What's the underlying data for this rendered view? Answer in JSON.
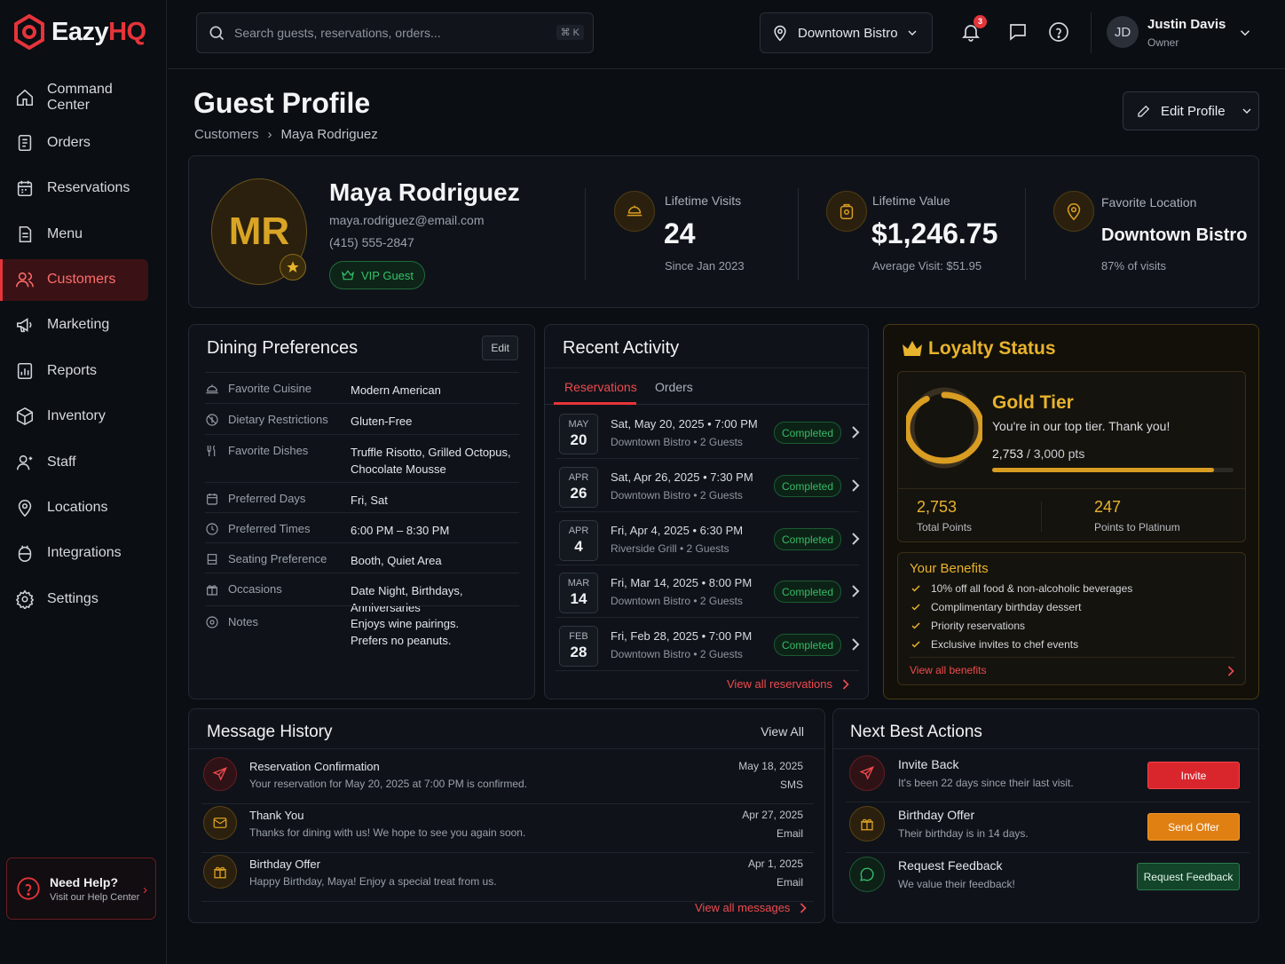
{
  "app": {
    "brand_main": "Eazy",
    "brand_accent": "HQ",
    "accent_color": "#e5343a",
    "gold_color": "#e8b32d"
  },
  "sidebar": {
    "items": [
      {
        "label": "Command Center",
        "icon": "home-icon"
      },
      {
        "label": "Orders",
        "icon": "receipt-icon"
      },
      {
        "label": "Reservations",
        "icon": "calendar-icon"
      },
      {
        "label": "Menu",
        "icon": "document-icon"
      },
      {
        "label": "Customers",
        "icon": "users-icon",
        "active": true
      },
      {
        "label": "Marketing",
        "icon": "megaphone-icon"
      },
      {
        "label": "Reports",
        "icon": "report-icon"
      },
      {
        "label": "Inventory",
        "icon": "box-icon"
      },
      {
        "label": "Staff",
        "icon": "staff-icon"
      },
      {
        "label": "Locations",
        "icon": "pin-icon"
      },
      {
        "label": "Integrations",
        "icon": "plug-icon"
      },
      {
        "label": "Settings",
        "icon": "gear-icon"
      }
    ],
    "help": {
      "title": "Need Help?",
      "subtitle": "Visit our Help Center"
    }
  },
  "topbar": {
    "search_placeholder": "Search guests, reservations, orders...",
    "search_shortcut": "⌘ K",
    "location": "Downtown Bistro",
    "notifications_count": "3",
    "user": {
      "initials": "JD",
      "name": "Justin Davis",
      "role": "Owner"
    }
  },
  "page": {
    "title": "Guest Profile",
    "breadcrumb": [
      "Customers",
      "Maya Rodriguez"
    ],
    "edit_button": "Edit Profile"
  },
  "profile": {
    "initials": "MR",
    "name": "Maya Rodriguez",
    "email": "maya.rodriguez@email.com",
    "phone": "(415) 555-2847",
    "badge": "VIP Guest",
    "stats": [
      {
        "label": "Lifetime Visits",
        "value": "24",
        "sub": "Since Jan 2023"
      },
      {
        "label": "Lifetime Value",
        "value": "$1,246.75",
        "sub": "Average Visit: $51.95"
      },
      {
        "label": "Favorite Location",
        "value": "Downtown Bistro",
        "sub": "87% of visits"
      }
    ]
  },
  "preferences": {
    "title": "Dining Preferences",
    "edit": "Edit",
    "rows": [
      {
        "label": "Favorite Cuisine",
        "value": "Modern American"
      },
      {
        "label": "Dietary Restrictions",
        "value": "Gluten-Free"
      },
      {
        "label": "Favorite Dishes",
        "value": "Truffle Risotto, Grilled Octopus, Chocolate Mousse"
      },
      {
        "label": "Preferred Days",
        "value": "Fri, Sat"
      },
      {
        "label": "Preferred Times",
        "value": "6:00 PM – 8:30 PM"
      },
      {
        "label": "Seating Preference",
        "value": "Booth, Quiet Area"
      },
      {
        "label": "Occasions",
        "value": "Date Night, Birthdays, Anniversaries"
      },
      {
        "label": "Notes",
        "value": "Enjoys wine pairings. Prefers no peanuts."
      }
    ]
  },
  "activity": {
    "title": "Recent Activity",
    "tabs": [
      "Reservations",
      "Orders"
    ],
    "rows": [
      {
        "month": "MAY",
        "day": "20",
        "line1": "Sat, May 20, 2025  •  7:00 PM",
        "line2": "Downtown Bistro  •  2 Guests",
        "status": "Completed"
      },
      {
        "month": "APR",
        "day": "26",
        "line1": "Sat, Apr 26, 2025  •  7:30 PM",
        "line2": "Downtown Bistro  •  2 Guests",
        "status": "Completed"
      },
      {
        "month": "APR",
        "day": "4",
        "line1": "Fri, Apr 4, 2025  •  6:30 PM",
        "line2": "Riverside Grill  •  2 Guests",
        "status": "Completed"
      },
      {
        "month": "MAR",
        "day": "14",
        "line1": "Fri, Mar 14, 2025  •  8:00 PM",
        "line2": "Downtown Bistro  •  2 Guests",
        "status": "Completed"
      },
      {
        "month": "FEB",
        "day": "28",
        "line1": "Fri, Feb 28, 2025  •  7:00 PM",
        "line2": "Downtown Bistro  •  2 Guests",
        "status": "Completed"
      }
    ],
    "view_all": "View all reservations"
  },
  "loyalty": {
    "title": "Loyalty Status",
    "tier": "Gold Tier",
    "message": "You're in our top tier. Thank you!",
    "points": "2,753",
    "points_goal": "3,000 pts",
    "progress": 0.9177,
    "total_points": "2,753",
    "total_points_label": "Total Points",
    "to_next": "247",
    "to_next_label": "Points to Platinum",
    "benefits_title": "Your Benefits",
    "benefits": [
      "10% off all food & non-alcoholic beverages",
      "Complimentary birthday dessert",
      "Priority reservations",
      "Exclusive invites to chef events"
    ],
    "view_all": "View all benefits"
  },
  "messages": {
    "title": "Message History",
    "view_all": "View All",
    "rows": [
      {
        "title": "Reservation Confirmation",
        "body": "Your reservation for May 20, 2025 at 7:00 PM is confirmed.",
        "date": "May 18, 2025",
        "channel": "SMS",
        "icon": "send-icon"
      },
      {
        "title": "Thank You",
        "body": "Thanks for dining with us! We hope to see you again soon.",
        "date": "Apr 27, 2025",
        "channel": "Email",
        "icon": "mail-icon"
      },
      {
        "title": "Birthday Offer",
        "body": "Happy Birthday, Maya! Enjoy a special treat from us.",
        "date": "Apr 1, 2025",
        "channel": "Email",
        "icon": "gift-icon"
      }
    ],
    "view_all_messages": "View all messages"
  },
  "actions": {
    "title": "Next Best Actions",
    "rows": [
      {
        "title": "Invite Back",
        "sub": "It's been 22 days since their last visit.",
        "button": "Invite"
      },
      {
        "title": "Birthday Offer",
        "sub": "Their birthday is in 14 days.",
        "button": "Send Offer"
      },
      {
        "title": "Request Feedback",
        "sub": "We value their feedback!",
        "button": "Request Feedback"
      }
    ]
  }
}
